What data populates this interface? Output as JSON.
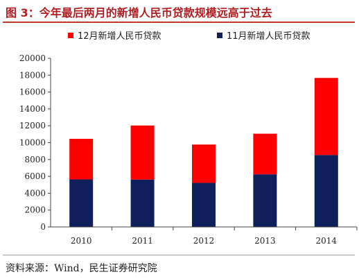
{
  "title": "图 3：今年最后两月的新增人民币贷款规模远高于过去",
  "source": "资料来源：Wind，民生证券研究院",
  "chart_data": {
    "type": "bar",
    "stacked": true,
    "categories": [
      "2010",
      "2011",
      "2012",
      "2013",
      "2014"
    ],
    "series": [
      {
        "name": "11月新增人民币贷款",
        "color": "#0f1f5c",
        "values": [
          5640,
          5620,
          5230,
          6240,
          8530
        ]
      },
      {
        "name": "12月新增人民币贷款",
        "color": "#ff0000",
        "values": [
          4810,
          6410,
          4540,
          4820,
          9140
        ]
      }
    ],
    "ylim": [
      0,
      20000
    ],
    "yticks": [
      0,
      2000,
      4000,
      6000,
      8000,
      10000,
      12000,
      14000,
      16000,
      18000,
      20000
    ],
    "legend": [
      "12月新增人民币贷款",
      "11月新增人民币贷款"
    ],
    "legend_position": "top",
    "grid": false
  }
}
